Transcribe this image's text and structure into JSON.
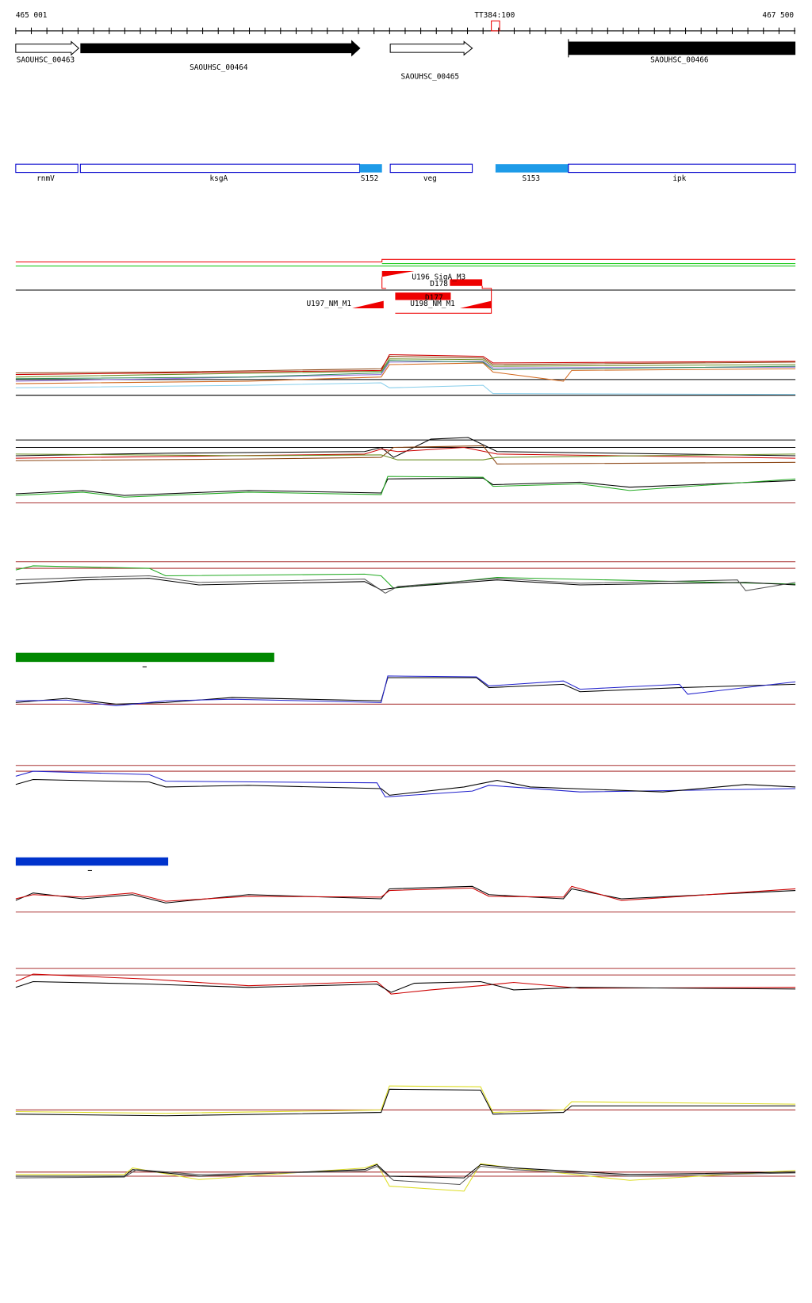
{
  "ruler": {
    "start": "465 001",
    "end": "467 500",
    "marker": "TT384:100"
  },
  "genes": [
    "SAOUHSC_00463",
    "SAOUHSC_00464",
    "SAOUHSC_00465",
    "SAOUHSC_00466"
  ],
  "annotations": [
    "rnmV",
    "ksgA",
    "S152",
    "veg",
    "S153",
    "ipk"
  ],
  "features": [
    "U196_SigA_M3",
    "D178",
    "D177",
    "U197_NM_M1",
    "U198_NM_M1"
  ]
}
